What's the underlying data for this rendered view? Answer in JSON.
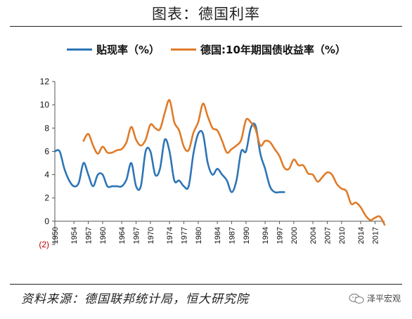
{
  "title": "图表：德国利率",
  "source": "资料来源：德国联邦统计局，恒大研究院",
  "brand": "泽平宏观",
  "brand_icon": "wechat-bubble-icon",
  "chart_data": {
    "type": "line",
    "legend_position": "top",
    "grid": false,
    "x_range": [
      1950,
      2019
    ],
    "ylim": [
      -2,
      12
    ],
    "yticks": [
      {
        "value": 12,
        "label": "12"
      },
      {
        "value": 10,
        "label": "10"
      },
      {
        "value": 8,
        "label": "8"
      },
      {
        "value": 6,
        "label": "6"
      },
      {
        "value": 4,
        "label": "4"
      },
      {
        "value": 2,
        "label": "2"
      },
      {
        "value": 0,
        "label": "0"
      },
      {
        "value": -2,
        "label": "(2)"
      }
    ],
    "xticks": [
      1950,
      1954,
      1957,
      1960,
      1964,
      1967,
      1970,
      1974,
      1977,
      1980,
      1984,
      1987,
      1990,
      1994,
      1997,
      2000,
      2004,
      2007,
      2010,
      2014,
      2017
    ],
    "series": [
      {
        "name": "贴现率（%）",
        "color": "#2e75b6",
        "points": [
          [
            1950,
            6.0
          ],
          [
            1951,
            6.0
          ],
          [
            1952,
            4.5
          ],
          [
            1953,
            3.5
          ],
          [
            1954,
            3.0
          ],
          [
            1955,
            3.3
          ],
          [
            1956,
            5.0
          ],
          [
            1957,
            4.0
          ],
          [
            1958,
            3.0
          ],
          [
            1959,
            4.0
          ],
          [
            1960,
            4.0
          ],
          [
            1961,
            3.0
          ],
          [
            1962,
            3.0
          ],
          [
            1963,
            3.0
          ],
          [
            1964,
            3.0
          ],
          [
            1965,
            3.6
          ],
          [
            1966,
            5.0
          ],
          [
            1967,
            3.0
          ],
          [
            1968,
            3.0
          ],
          [
            1969,
            6.0
          ],
          [
            1970,
            6.0
          ],
          [
            1971,
            4.0
          ],
          [
            1972,
            4.5
          ],
          [
            1973,
            7.0
          ],
          [
            1974,
            6.0
          ],
          [
            1975,
            3.5
          ],
          [
            1976,
            3.5
          ],
          [
            1977,
            3.0
          ],
          [
            1978,
            3.0
          ],
          [
            1979,
            5.8
          ],
          [
            1980,
            7.5
          ],
          [
            1981,
            7.5
          ],
          [
            1982,
            5.0
          ],
          [
            1983,
            4.0
          ],
          [
            1984,
            4.5
          ],
          [
            1985,
            4.0
          ],
          [
            1986,
            3.5
          ],
          [
            1987,
            2.5
          ],
          [
            1988,
            3.5
          ],
          [
            1989,
            6.0
          ],
          [
            1990,
            6.0
          ],
          [
            1991,
            8.0
          ],
          [
            1992,
            8.2
          ],
          [
            1993,
            5.8
          ],
          [
            1994,
            4.5
          ],
          [
            1995,
            3.0
          ],
          [
            1996,
            2.5
          ],
          [
            1997,
            2.5
          ],
          [
            1998,
            2.5
          ]
        ]
      },
      {
        "name": "德国:10年期国债收益率（%）",
        "color": "#e07b28",
        "points": [
          [
            1956,
            6.9
          ],
          [
            1957,
            7.5
          ],
          [
            1958,
            6.5
          ],
          [
            1959,
            5.8
          ],
          [
            1960,
            6.4
          ],
          [
            1961,
            5.9
          ],
          [
            1962,
            5.9
          ],
          [
            1963,
            6.1
          ],
          [
            1964,
            6.2
          ],
          [
            1965,
            6.8
          ],
          [
            1966,
            8.1
          ],
          [
            1967,
            7.0
          ],
          [
            1968,
            6.5
          ],
          [
            1969,
            7.0
          ],
          [
            1970,
            8.3
          ],
          [
            1971,
            8.0
          ],
          [
            1972,
            7.9
          ],
          [
            1973,
            9.3
          ],
          [
            1974,
            10.4
          ],
          [
            1975,
            8.5
          ],
          [
            1976,
            7.8
          ],
          [
            1977,
            6.4
          ],
          [
            1978,
            6.1
          ],
          [
            1979,
            7.6
          ],
          [
            1980,
            8.5
          ],
          [
            1981,
            10.1
          ],
          [
            1982,
            9.0
          ],
          [
            1983,
            8.0
          ],
          [
            1984,
            7.8
          ],
          [
            1985,
            6.9
          ],
          [
            1986,
            5.9
          ],
          [
            1987,
            6.2
          ],
          [
            1988,
            6.5
          ],
          [
            1989,
            7.0
          ],
          [
            1990,
            8.7
          ],
          [
            1991,
            8.5
          ],
          [
            1992,
            7.9
          ],
          [
            1993,
            6.5
          ],
          [
            1994,
            6.9
          ],
          [
            1995,
            6.8
          ],
          [
            1996,
            6.2
          ],
          [
            1997,
            5.6
          ],
          [
            1998,
            4.6
          ],
          [
            1999,
            4.5
          ],
          [
            2000,
            5.3
          ],
          [
            2001,
            4.8
          ],
          [
            2002,
            4.8
          ],
          [
            2003,
            4.1
          ],
          [
            2004,
            4.0
          ],
          [
            2005,
            3.4
          ],
          [
            2006,
            3.8
          ],
          [
            2007,
            4.2
          ],
          [
            2008,
            4.0
          ],
          [
            2009,
            3.2
          ],
          [
            2010,
            2.8
          ],
          [
            2011,
            2.6
          ],
          [
            2012,
            1.5
          ],
          [
            2013,
            1.6
          ],
          [
            2014,
            1.2
          ],
          [
            2015,
            0.5
          ],
          [
            2016,
            0.1
          ],
          [
            2017,
            0.3
          ],
          [
            2018,
            0.4
          ],
          [
            2019,
            -0.3
          ]
        ]
      }
    ]
  }
}
